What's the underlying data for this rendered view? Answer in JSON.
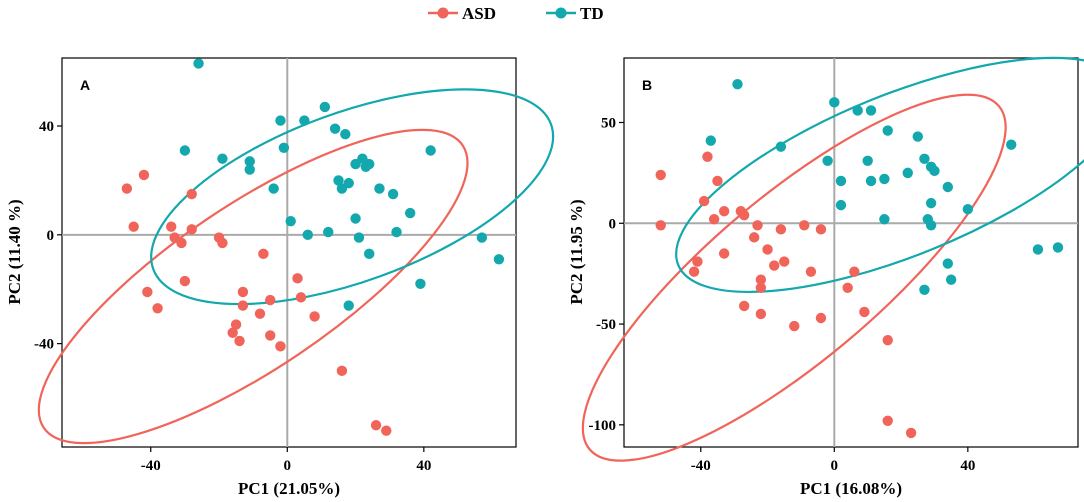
{
  "legend": {
    "items": [
      {
        "label": "ASD",
        "color": "#f0645a"
      },
      {
        "label": "TD",
        "color": "#12a8ad"
      }
    ]
  },
  "chart_data": [
    {
      "type": "scatter",
      "panel_label": "A",
      "xlabel": "PC1 (21.05%)",
      "ylabel": "PC2 (11.40 %)",
      "xlim": [
        -66,
        67
      ],
      "ylim": [
        -78,
        65
      ],
      "xticks": [
        -40,
        0,
        40
      ],
      "yticks": [
        -40,
        0,
        40
      ],
      "series": [
        {
          "name": "ASD",
          "color": "#f0645a",
          "points": [
            [
              -47,
              17
            ],
            [
              -42,
              22
            ],
            [
              -45,
              3
            ],
            [
              -34,
              3
            ],
            [
              -33,
              -1
            ],
            [
              -31,
              -3
            ],
            [
              -28,
              15
            ],
            [
              -28,
              2
            ],
            [
              -20,
              -1
            ],
            [
              -19,
              -3
            ],
            [
              -7,
              -7
            ],
            [
              -41,
              -21
            ],
            [
              -38,
              -27
            ],
            [
              -30,
              -17
            ],
            [
              -13,
              -21
            ],
            [
              -13,
              -26
            ],
            [
              -8,
              -29
            ],
            [
              -5,
              -24
            ],
            [
              -15,
              -33
            ],
            [
              -16,
              -36
            ],
            [
              -14,
              -39
            ],
            [
              -5,
              -37
            ],
            [
              -2,
              -41
            ],
            [
              3,
              -16
            ],
            [
              4,
              -23
            ],
            [
              8,
              -30
            ],
            [
              16,
              -50
            ],
            [
              26,
              -70
            ],
            [
              29,
              -72
            ]
          ],
          "ellipse": {
            "cx": -10,
            "cy": -19,
            "rx": 74,
            "ry": 30,
            "angle_deg": 34
          }
        },
        {
          "name": "TD",
          "color": "#12a8ad",
          "points": [
            [
              -26,
              63
            ],
            [
              -30,
              31
            ],
            [
              -19,
              28
            ],
            [
              -11,
              24
            ],
            [
              -4,
              17
            ],
            [
              -11,
              27
            ],
            [
              -2,
              42
            ],
            [
              -1,
              32
            ],
            [
              5,
              42
            ],
            [
              11,
              47
            ],
            [
              14,
              39
            ],
            [
              17,
              37
            ],
            [
              20,
              26
            ],
            [
              22,
              28
            ],
            [
              23,
              25
            ],
            [
              24,
              26
            ],
            [
              15,
              20
            ],
            [
              18,
              19
            ],
            [
              16,
              17
            ],
            [
              27,
              17
            ],
            [
              31,
              15
            ],
            [
              1,
              5
            ],
            [
              12,
              1
            ],
            [
              20,
              6
            ],
            [
              21,
              -1
            ],
            [
              32,
              1
            ],
            [
              36,
              8
            ],
            [
              42,
              31
            ],
            [
              57,
              -1
            ],
            [
              62,
              -9
            ],
            [
              39,
              -18
            ],
            [
              24,
              -7
            ],
            [
              18,
              -26
            ],
            [
              6,
              0
            ]
          ],
          "ellipse": {
            "cx": 19,
            "cy": 14,
            "rx": 62,
            "ry": 31,
            "angle_deg": 20
          }
        }
      ]
    },
    {
      "type": "scatter",
      "panel_label": "B",
      "xlabel": "PC1 (16.08%)",
      "ylabel": "PC2 (11.95 %)",
      "xlim": [
        -63,
        73
      ],
      "ylim": [
        -111,
        82
      ],
      "xticks": [
        -40,
        0,
        40
      ],
      "yticks": [
        -100,
        -50,
        0,
        50
      ],
      "series": [
        {
          "name": "ASD",
          "color": "#f0645a",
          "points": [
            [
              -52,
              24
            ],
            [
              -52,
              -1
            ],
            [
              -38,
              33
            ],
            [
              -35,
              21
            ],
            [
              -39,
              11
            ],
            [
              -36,
              2
            ],
            [
              -33,
              6
            ],
            [
              -28,
              6
            ],
            [
              -27,
              4
            ],
            [
              -23,
              -1
            ],
            [
              -24,
              -7
            ],
            [
              -20,
              -13
            ],
            [
              -9,
              -1
            ],
            [
              -4,
              -3
            ],
            [
              -16,
              -3
            ],
            [
              -41,
              -19
            ],
            [
              -42,
              -24
            ],
            [
              -33,
              -15
            ],
            [
              -22,
              -28
            ],
            [
              -22,
              -32
            ],
            [
              -18,
              -21
            ],
            [
              -15,
              -19
            ],
            [
              -7,
              -24
            ],
            [
              6,
              -24
            ],
            [
              4,
              -32
            ],
            [
              -27,
              -41
            ],
            [
              -22,
              -45
            ],
            [
              -12,
              -51
            ],
            [
              -4,
              -47
            ],
            [
              9,
              -44
            ],
            [
              16,
              -58
            ],
            [
              16,
              -98
            ],
            [
              23,
              -104
            ]
          ],
          "ellipse": {
            "cx": -12,
            "cy": -27,
            "rx": 80,
            "ry": 41,
            "angle_deg": 40
          }
        },
        {
          "name": "TD",
          "color": "#12a8ad",
          "points": [
            [
              -29,
              69
            ],
            [
              -37,
              41
            ],
            [
              -16,
              38
            ],
            [
              0,
              60
            ],
            [
              7,
              56
            ],
            [
              11,
              56
            ],
            [
              16,
              46
            ],
            [
              22,
              25
            ],
            [
              25,
              43
            ],
            [
              27,
              32
            ],
            [
              29,
              28
            ],
            [
              30,
              26
            ],
            [
              34,
              18
            ],
            [
              10,
              31
            ],
            [
              11,
              21
            ],
            [
              15,
              22
            ],
            [
              -2,
              31
            ],
            [
              2,
              21
            ],
            [
              2,
              9
            ],
            [
              15,
              2
            ],
            [
              28,
              2
            ],
            [
              29,
              10
            ],
            [
              29,
              -1
            ],
            [
              34,
              -20
            ],
            [
              35,
              -28
            ],
            [
              27,
              -33
            ],
            [
              40,
              7
            ],
            [
              53,
              39
            ],
            [
              61,
              -13
            ],
            [
              67,
              -12
            ]
          ],
          "ellipse": {
            "cx": 20,
            "cy": 24,
            "rx": 72,
            "ry": 40,
            "angle_deg": 22
          }
        }
      ]
    }
  ]
}
